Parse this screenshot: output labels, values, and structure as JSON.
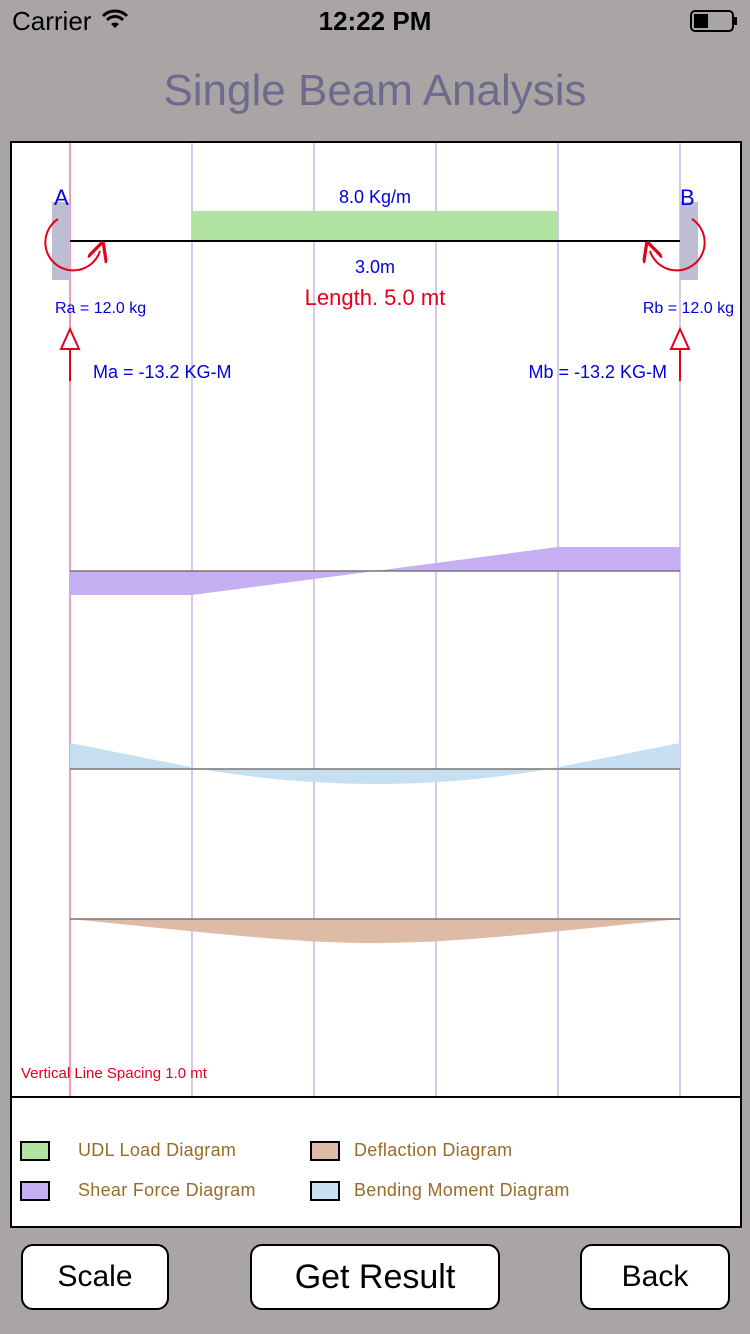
{
  "status_bar": {
    "carrier": "Carrier",
    "time": "12:22 PM"
  },
  "title": "Single Beam Analysis",
  "beam": {
    "support_a_label": "A",
    "support_b_label": "B",
    "udl_load": "8.0 Kg/m",
    "udl_span": "3.0m",
    "length": "Length. 5.0 mt",
    "ra": "Ra = 12.0 kg",
    "rb": "Rb = 12.0 kg",
    "ma": "Ma = -13.2 KG-M",
    "mb": "Mb = -13.2 KG-M",
    "spacing_note": "Vertical Line Spacing 1.0 mt"
  },
  "colors": {
    "udl": "#b0e3a2",
    "shear": "#c5aef2",
    "bending": "#c6e0f2",
    "deflection": "#ddbba6",
    "grid": "#c8b6ea",
    "red": "#e3001b",
    "blue": "#0000e0"
  },
  "legend": [
    {
      "label": "UDL Load Diagram",
      "color": "#b0e3a2"
    },
    {
      "label": "Deflaction Diagram",
      "color": "#ddbba6"
    },
    {
      "label": "Shear Force Diagram",
      "color": "#c5aef2"
    },
    {
      "label": "Bending Moment Diagram",
      "color": "#c6e0f2"
    }
  ],
  "buttons": {
    "scale": "Scale",
    "get_result": "Get Result",
    "back": "Back"
  }
}
